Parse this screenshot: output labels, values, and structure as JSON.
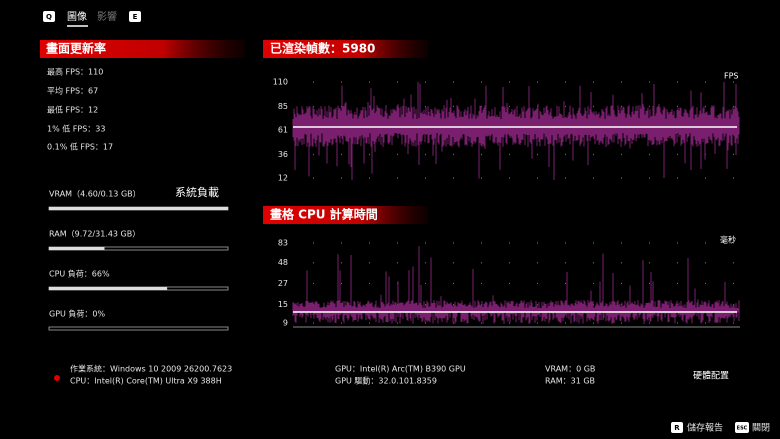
{
  "tabs": {
    "left_key": "Q",
    "items": [
      "圖像",
      "影響"
    ],
    "right_key": "E"
  },
  "frame_rate": {
    "title": "畫面更新率",
    "stats": [
      "最高 FPS：110",
      "平均 FPS：67",
      "最低 FPS：12",
      "1% 低 FPS：33",
      "0.1% 低 FPS：17"
    ]
  },
  "system_load": {
    "title": "系統負載",
    "meters": [
      {
        "label": "VRAM（4.60/0.13 GB）",
        "fill": 100
      },
      {
        "label": "RAM（9.72/31.43 GB）",
        "fill": 31
      },
      {
        "label": "CPU 負荷：66%",
        "fill": 66
      },
      {
        "label": "GPU 負荷：0%",
        "fill": 0
      }
    ]
  },
  "fps_chart": {
    "title": "已渲染幀數：5980",
    "unit": "FPS",
    "ylim": [
      12,
      110
    ],
    "yticks": [
      110,
      85,
      61,
      36,
      12
    ]
  },
  "frame_time_chart": {
    "title": "畫格 CPU 計算時間",
    "unit": "毫秒",
    "ylim": [
      9,
      83
    ],
    "yticks": [
      83,
      48,
      27,
      15,
      9
    ],
    "log_scale": true
  },
  "hardware": {
    "title": "硬體配置",
    "os": "作業系統：Windows 10 2009 26200.7623",
    "cpu": "CPU：Intel(R) Core(TM) Ultra X9 388H",
    "gpu": "GPU：Intel(R) Arc(TM) B390 GPU",
    "gpu_driver": "GPU 驅動：32.0.101.8359",
    "vram": "VRAM：0 GB",
    "ram": "RAM：31 GB"
  },
  "footer": [
    {
      "key": "R",
      "label": "儲存報告"
    },
    {
      "key": "ESC",
      "label": "關閉"
    }
  ]
}
